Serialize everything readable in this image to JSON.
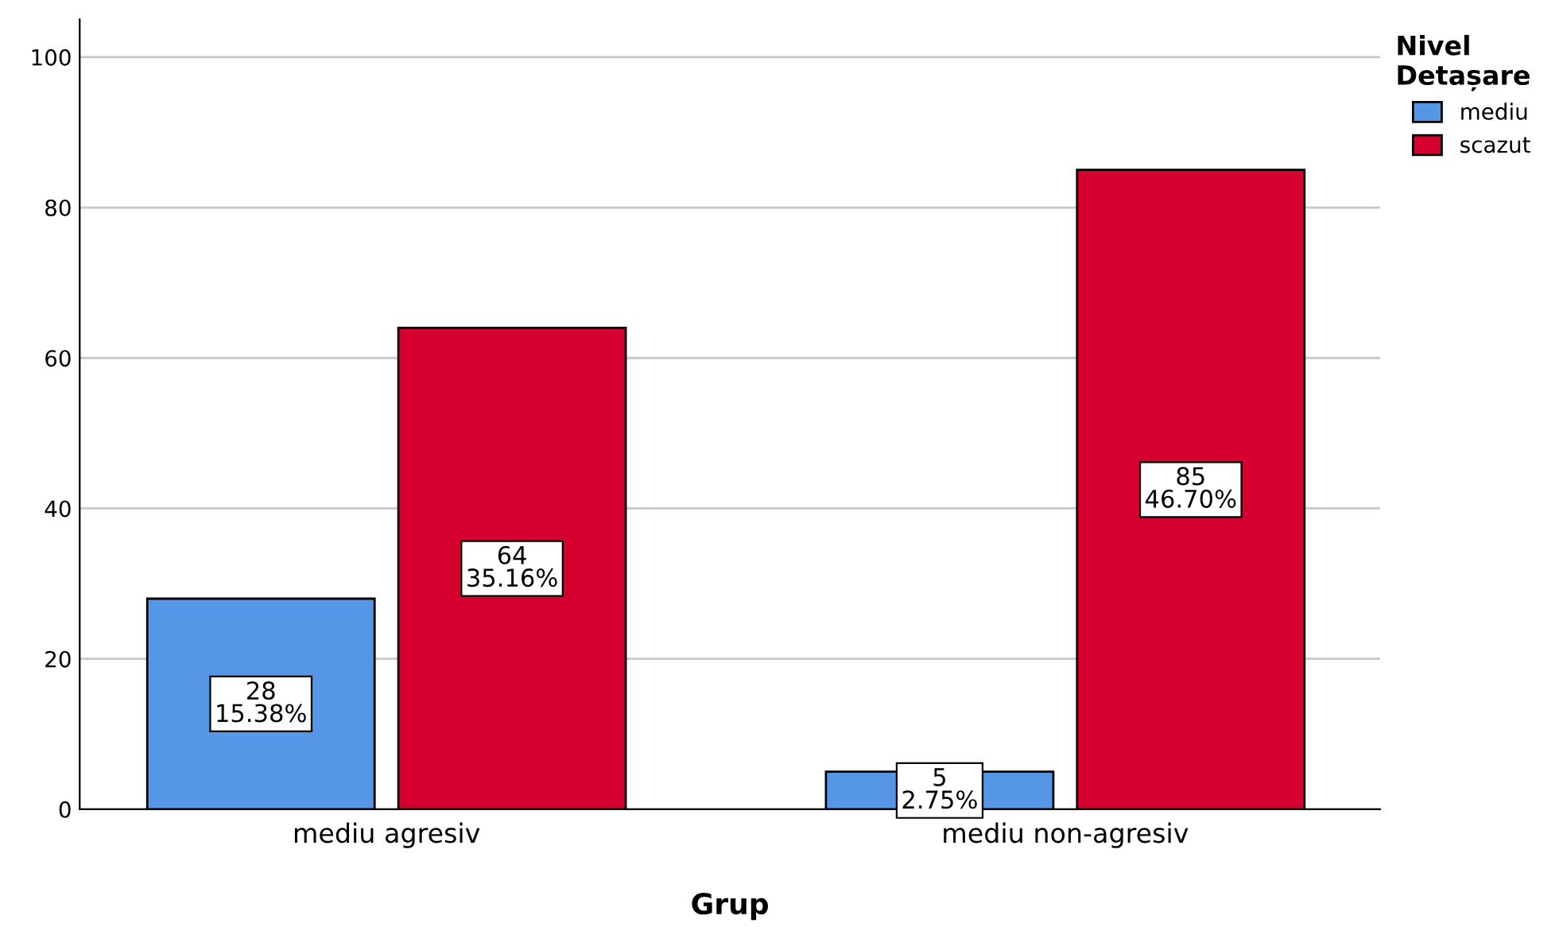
{
  "chart_data": {
    "type": "bar",
    "xlabel": "Grup",
    "legend_title": "Nivel\nDetașare",
    "categories": [
      "mediu agresiv",
      "mediu non-agresiv"
    ],
    "series": [
      {
        "name": "mediu",
        "color": "#5596e6",
        "values": [
          28,
          5
        ],
        "value_labels": [
          "28\n15.38%",
          "5\n2.75%"
        ]
      },
      {
        "name": "scazut",
        "color": "#d6002f",
        "values": [
          64,
          85
        ],
        "value_labels": [
          "64\n35.16%",
          "85\n46.70%"
        ]
      }
    ],
    "ylim": [
      0,
      105
    ],
    "yticks": [
      0,
      20,
      40,
      60,
      80,
      100
    ],
    "grid": "y",
    "legend": "top right"
  }
}
